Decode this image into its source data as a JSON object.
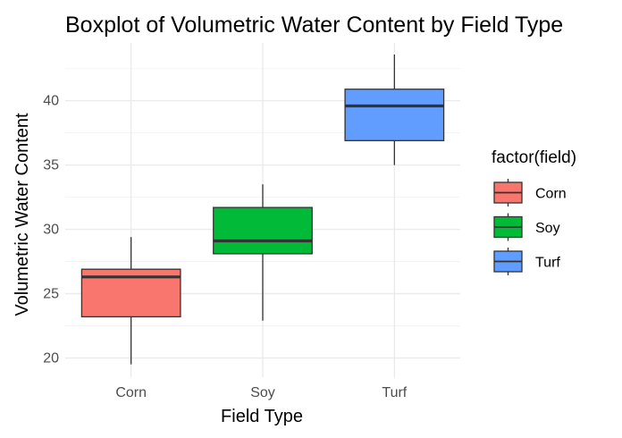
{
  "chart_data": {
    "type": "boxplot",
    "title": "Boxplot of Volumetric Water Content by Field Type",
    "xlabel": "Field Type",
    "ylabel": "Volumetric Water Content",
    "categories": [
      "Corn",
      "Soy",
      "Turf"
    ],
    "ylim": [
      18.5,
      44.5
    ],
    "y_ticks": [
      20,
      25,
      30,
      35,
      40
    ],
    "grid": true,
    "legend": {
      "title": "factor(field)",
      "position": "right",
      "entries": [
        "Corn",
        "Soy",
        "Turf"
      ]
    },
    "boxes": [
      {
        "category": "Corn",
        "min": 19.5,
        "q1": 23.2,
        "median": 26.3,
        "q3": 26.9,
        "max": 29.4,
        "color": "#F8766D"
      },
      {
        "category": "Soy",
        "min": 22.9,
        "q1": 28.1,
        "median": 29.1,
        "q3": 31.7,
        "max": 33.5,
        "color": "#00BA38"
      },
      {
        "category": "Turf",
        "min": 35.0,
        "q1": 36.9,
        "median": 39.6,
        "q3": 40.9,
        "max": 43.6,
        "color": "#619CFF"
      }
    ]
  }
}
